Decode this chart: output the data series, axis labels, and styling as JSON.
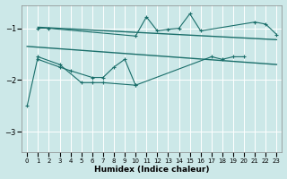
{
  "xlabel": "Humidex (Indice chaleur)",
  "bg_color": "#cce8e8",
  "line_color": "#1a6e6a",
  "grid_color": "#ffffff",
  "xlim": [
    -0.5,
    23.5
  ],
  "ylim": [
    -3.4,
    -0.55
  ],
  "yticks": [
    -3,
    -2,
    -1
  ],
  "xticks": [
    0,
    1,
    2,
    3,
    4,
    5,
    6,
    7,
    8,
    9,
    10,
    11,
    12,
    13,
    14,
    15,
    16,
    17,
    18,
    19,
    20,
    21,
    22,
    23
  ],
  "series1_x": [
    1,
    2,
    10,
    11,
    12,
    13,
    14,
    15,
    16,
    21,
    22,
    23
  ],
  "series1_y": [
    -1.0,
    -1.0,
    -1.15,
    -0.78,
    -1.05,
    -1.02,
    -1.0,
    -0.72,
    -1.05,
    -0.88,
    -0.92,
    -1.12
  ],
  "series2_x": [
    1,
    3,
    4,
    6,
    7,
    8,
    9,
    10
  ],
  "series2_y": [
    -1.6,
    -1.75,
    -1.82,
    -1.95,
    -1.95,
    -1.75,
    -1.6,
    -2.1
  ],
  "series3_x": [
    0,
    1,
    3,
    5,
    6,
    7,
    10,
    17,
    18,
    19,
    20
  ],
  "series3_y": [
    -2.5,
    -1.55,
    -1.7,
    -2.05,
    -2.05,
    -2.05,
    -2.1,
    -1.55,
    -1.6,
    -1.55,
    -1.55
  ],
  "trend1_x": [
    1,
    23
  ],
  "trend1_y": [
    -0.98,
    -1.22
  ],
  "trend2_x": [
    0,
    23
  ],
  "trend2_y": [
    -1.35,
    -1.7
  ]
}
